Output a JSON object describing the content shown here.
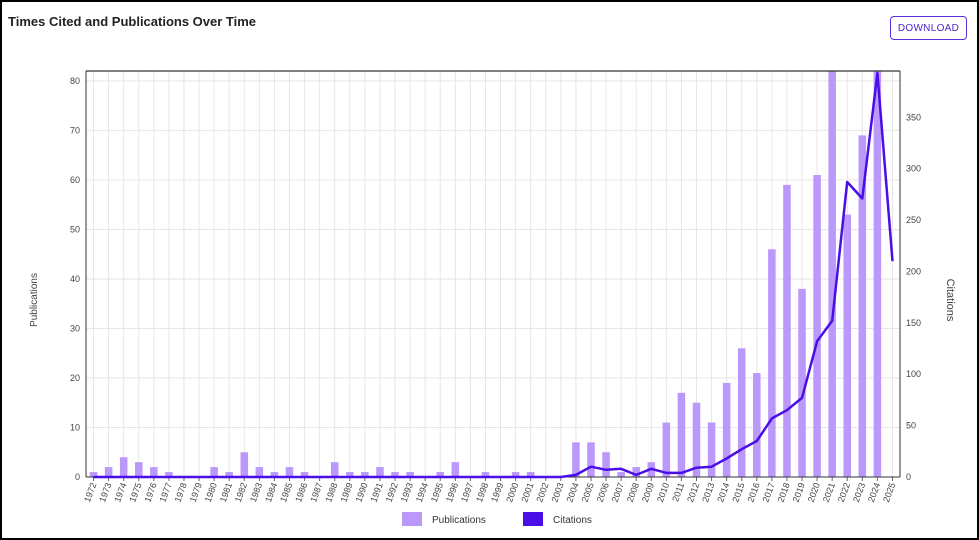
{
  "header": {
    "title": "Times Cited and Publications Over Time",
    "download_label": "DOWNLOAD"
  },
  "colors": {
    "publications": "#bb99fb",
    "citations": "#4a0ee6",
    "grid": "#e6e6e6",
    "button_border": "#5b2fd6"
  },
  "chart_data": {
    "type": "bar",
    "title": "Times Cited and Publications Over Time",
    "xlabel": "",
    "ylabel": "Publications",
    "y2label": "Citations",
    "ylim": [
      0,
      82
    ],
    "y2lim": [
      0,
      395
    ],
    "yticks": [
      0,
      10,
      20,
      30,
      40,
      50,
      60,
      70,
      80
    ],
    "y2ticks": [
      0,
      50,
      100,
      150,
      200,
      250,
      300,
      350
    ],
    "grid": true,
    "legend_position": "bottom-center",
    "categories": [
      "1972",
      "1973",
      "1974",
      "1975",
      "1976",
      "1977",
      "1978",
      "1979",
      "1980",
      "1981",
      "1982",
      "1983",
      "1984",
      "1985",
      "1986",
      "1987",
      "1988",
      "1989",
      "1990",
      "1991",
      "1992",
      "1993",
      "1994",
      "1995",
      "1996",
      "1997",
      "1998",
      "1999",
      "2000",
      "2001",
      "2002",
      "2003",
      "2004",
      "2005",
      "2006",
      "2007",
      "2008",
      "2009",
      "2010",
      "2011",
      "2012",
      "2013",
      "2014",
      "2015",
      "2016",
      "2017",
      "2018",
      "2019",
      "2020",
      "2021",
      "2022",
      "2023",
      "2024",
      "2025"
    ],
    "series": [
      {
        "name": "Publications",
        "type": "bar",
        "axis": "left",
        "values": [
          1,
          2,
          4,
          3,
          2,
          1,
          0,
          0,
          2,
          1,
          5,
          2,
          1,
          2,
          1,
          0,
          3,
          1,
          1,
          2,
          1,
          1,
          0,
          1,
          3,
          0,
          1,
          0,
          1,
          1,
          0,
          0,
          7,
          7,
          5,
          1,
          2,
          3,
          11,
          17,
          15,
          11,
          19,
          26,
          21,
          46,
          59,
          38,
          61,
          82,
          53,
          69,
          82,
          0
        ]
      },
      {
        "name": "Citations",
        "type": "line",
        "axis": "right",
        "values": [
          0,
          0,
          0,
          0,
          0,
          0,
          0,
          0,
          0,
          0,
          0,
          0,
          0,
          0,
          0,
          0,
          0,
          0,
          0,
          0,
          0,
          0,
          0,
          0,
          0,
          0,
          0,
          0,
          0,
          0,
          0,
          0,
          2,
          10,
          7,
          8,
          2,
          8,
          4,
          4,
          9,
          10,
          18,
          27,
          35,
          57,
          65,
          77,
          132,
          152,
          287,
          271,
          393,
          210
        ]
      }
    ]
  }
}
